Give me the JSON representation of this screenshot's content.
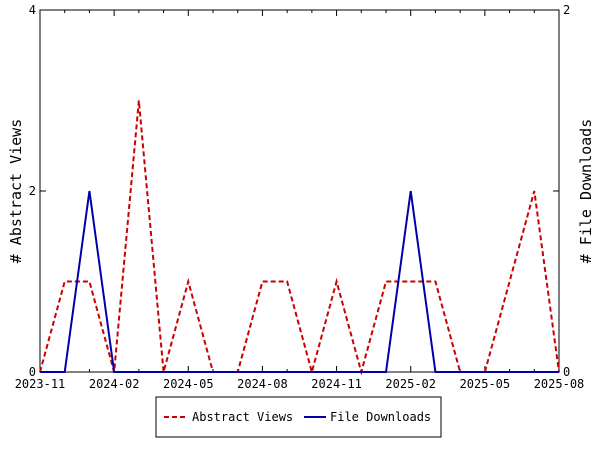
{
  "chart_data": {
    "type": "line",
    "x": [
      "2023-11",
      "2023-12",
      "2024-01",
      "2024-02",
      "2024-03",
      "2024-04",
      "2024-05",
      "2024-06",
      "2024-07",
      "2024-08",
      "2024-09",
      "2024-10",
      "2024-11",
      "2024-12",
      "2025-01",
      "2025-02",
      "2025-03",
      "2025-04",
      "2025-05",
      "2025-06",
      "2025-07",
      "2025-08"
    ],
    "x_tick_labels": [
      "2023-11",
      "2024-02",
      "2024-05",
      "2024-08",
      "2024-11",
      "2025-02",
      "2025-05",
      "2025-08"
    ],
    "ylabel_left": "# Abstract Views",
    "ylabel_right": "# File Downloads",
    "ylim_left": [
      0,
      4
    ],
    "ylim_right": [
      0,
      2
    ],
    "y_ticks_left": [
      "0",
      "2",
      "4"
    ],
    "y_ticks_right": [
      "0",
      "1",
      "2"
    ],
    "grid": false,
    "legend_position": "bottom-center",
    "series": [
      {
        "name": "Abstract Views",
        "axis": "left",
        "color": "#cc0000",
        "dash": true,
        "values": [
          0,
          1,
          1,
          0,
          3,
          0,
          1,
          0,
          0,
          1,
          1,
          0,
          1,
          0,
          1,
          1,
          1,
          0,
          0,
          1,
          2,
          0
        ]
      },
      {
        "name": "File Downloads",
        "axis": "right",
        "color": "#0000aa",
        "dash": false,
        "values": [
          0,
          0,
          1,
          0,
          0,
          0,
          0,
          0,
          0,
          0,
          0,
          0,
          0,
          0,
          0,
          1,
          0,
          0,
          0,
          0,
          0,
          0
        ]
      }
    ]
  }
}
